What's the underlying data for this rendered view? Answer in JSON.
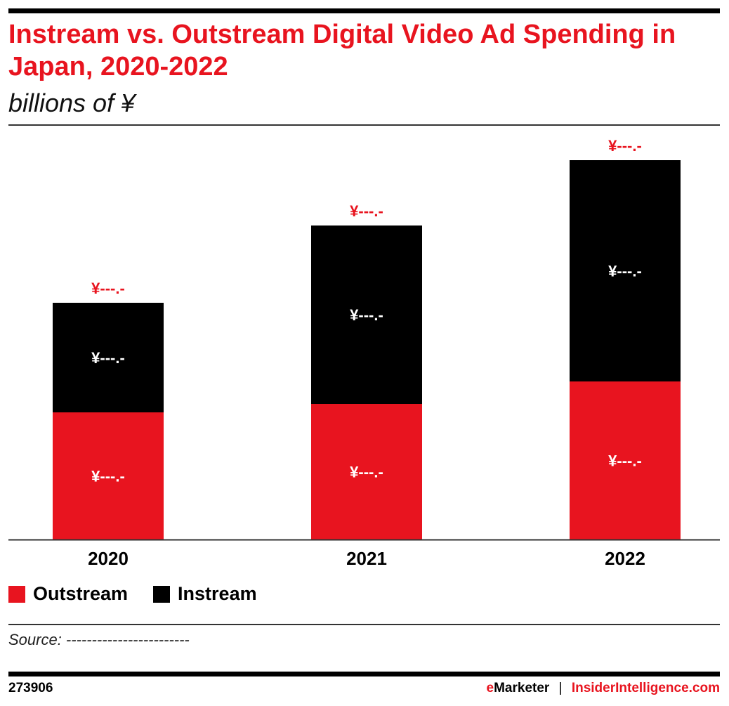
{
  "title": "Instream vs. Outstream Digital Video Ad Spending in Japan, 2020-2022",
  "subtitle": "billions of ¥",
  "chart_data": {
    "type": "bar",
    "stacked": true,
    "categories": [
      "2020",
      "2021",
      "2022"
    ],
    "series": [
      {
        "name": "Outstream",
        "color": "#e8141f",
        "values": [
          181,
          193,
          225
        ],
        "labels": [
          "¥---.-",
          "¥---.-",
          "¥---.-"
        ]
      },
      {
        "name": "Instream",
        "color": "#000000",
        "values": [
          156,
          254,
          315
        ],
        "labels": [
          "¥---.-",
          "¥---.-",
          "¥---.-"
        ]
      }
    ],
    "total_labels": [
      "¥---.-",
      "¥---.-",
      "¥---.-"
    ],
    "total_label_color": "#e8141f",
    "grid": false,
    "legend": "bottom-left"
  },
  "legend": {
    "outstream": "Outstream",
    "instream": "Instream"
  },
  "source": "Source: ------------------------",
  "footer": {
    "id": "273906",
    "brand_e": "e",
    "brand_rest": "Marketer",
    "sep": "|",
    "site": "InsiderIntelligence.com"
  }
}
